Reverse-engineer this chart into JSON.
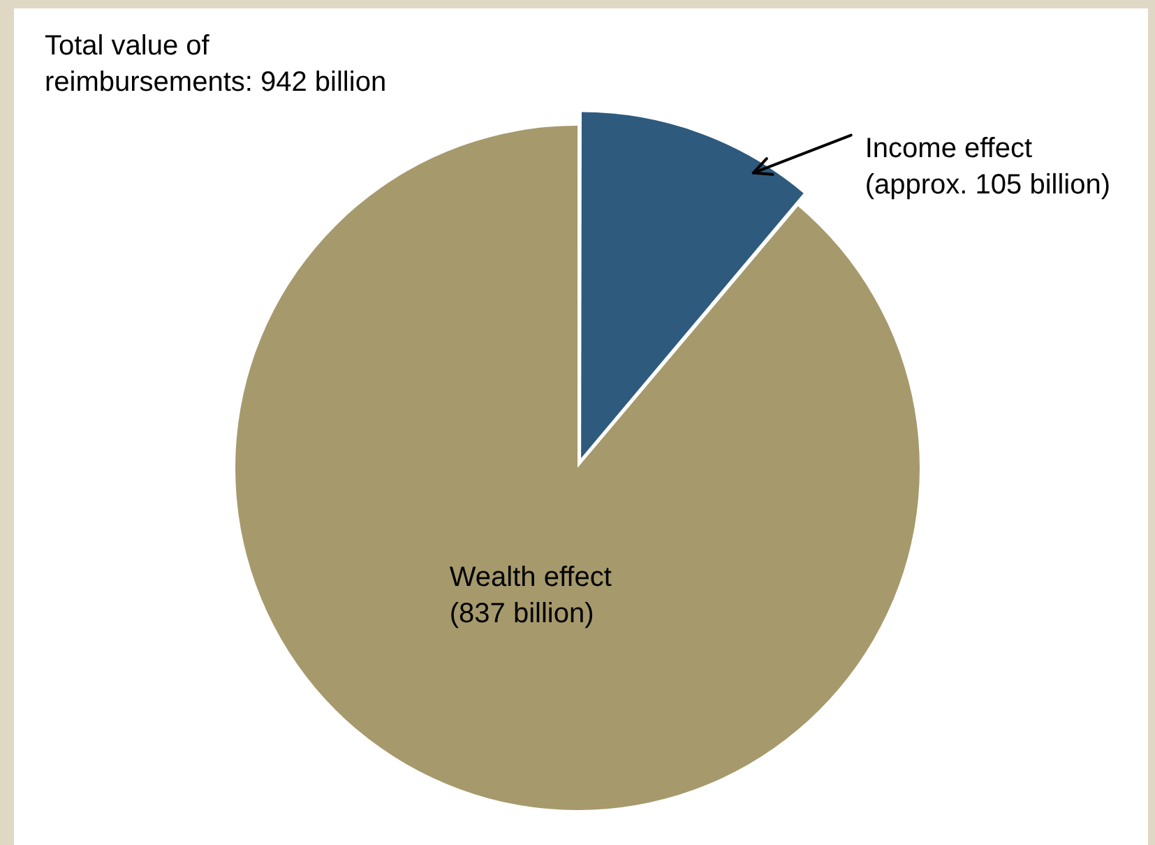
{
  "chart_data": {
    "type": "pie",
    "categories": [
      "Income effect",
      "Wealth effect"
    ],
    "values": [
      105,
      837
    ],
    "value_labels": [
      "(approx. 105 billion)",
      "(837 billion)"
    ],
    "colors": [
      "#2e5a7e",
      "#a6996c"
    ],
    "annotations": [
      "Total value of reimbursements: 942 billion"
    ],
    "legend": false
  }
}
